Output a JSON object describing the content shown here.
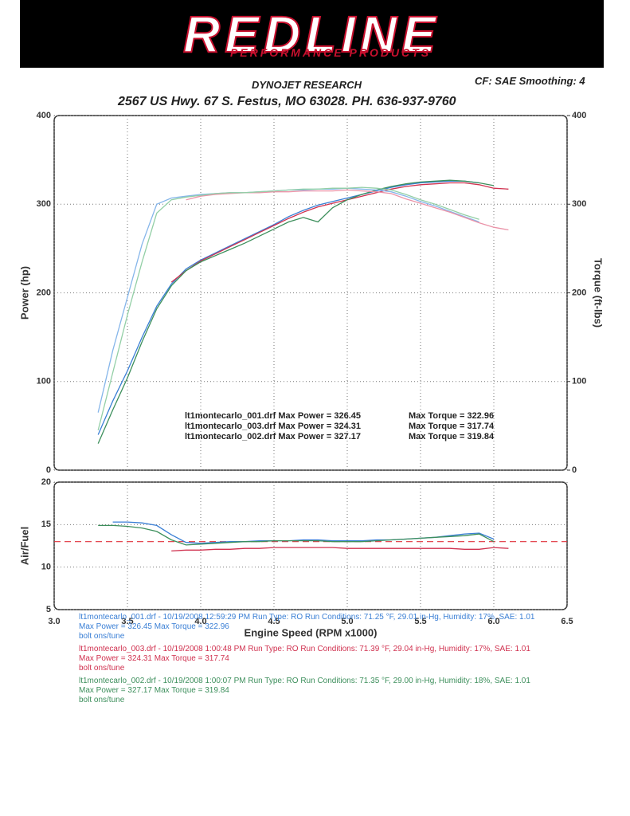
{
  "header": {
    "logo": "REDLINE",
    "logo_subtitle": "PERFORMANCE PRODUCTS",
    "company": "DYNOJET RESEARCH",
    "settings": "CF: SAE  Smoothing: 4",
    "address": "2567 US Hwy. 67 S. Festus, MO 63028. PH. 636-937-9760"
  },
  "chart_data": [
    {
      "type": "line",
      "ylabel": "Power (hp)",
      "y2label": "Torque (ft-lbs)",
      "x": [
        3.3,
        3.4,
        3.5,
        3.6,
        3.7,
        3.8,
        3.9,
        4.0,
        4.1,
        4.2,
        4.3,
        4.4,
        4.5,
        4.6,
        4.7,
        4.8,
        4.9,
        5.0,
        5.1,
        5.2,
        5.3,
        5.4,
        5.5,
        5.6,
        5.7,
        5.8,
        5.9,
        6.0,
        6.1
      ],
      "xlim": [
        3.0,
        6.5
      ],
      "xticks": [
        3,
        3.5,
        4,
        4.5,
        5,
        5.5,
        6,
        6.5
      ],
      "xtick_labels": false,
      "ylim": [
        0,
        400
      ],
      "yticks": [
        0,
        100,
        200,
        300,
        400
      ],
      "y2lim": [
        0,
        400
      ],
      "y2ticks": [
        0,
        100,
        200,
        300,
        400
      ],
      "grid": true,
      "series": [
        {
          "color": "#3a7fd5",
          "values": [
            40,
            78,
            112,
            150,
            185,
            210,
            227,
            237,
            245,
            253,
            261,
            269,
            277,
            286,
            293,
            299,
            303,
            307,
            311,
            315,
            319,
            322,
            324,
            325,
            326,
            326,
            324,
            null,
            null
          ]
        },
        {
          "color": "#d0314f",
          "values": [
            null,
            null,
            null,
            null,
            null,
            212,
            225,
            236,
            244,
            252,
            260,
            268,
            276,
            284,
            291,
            297,
            301,
            305,
            309,
            313,
            317,
            320,
            322,
            323,
            324,
            324,
            322,
            318,
            317
          ]
        },
        {
          "color": "#3d8f5c",
          "values": [
            30,
            68,
            104,
            145,
            182,
            208,
            225,
            235,
            242,
            249,
            256,
            264,
            272,
            280,
            285,
            280,
            296,
            305,
            311,
            316,
            320,
            323,
            325,
            326,
            327,
            326,
            324,
            321,
            null
          ]
        },
        {
          "color": "#86b6ea",
          "axis": "y2",
          "values": [
            65,
            135,
            195,
            255,
            300,
            307,
            309,
            311,
            312,
            313,
            313,
            314,
            315,
            316,
            316,
            317,
            317,
            318,
            317,
            316,
            314,
            309,
            303,
            298,
            292,
            286,
            280,
            null,
            null
          ]
        },
        {
          "color": "#eb93a8",
          "axis": "y2",
          "values": [
            null,
            null,
            null,
            null,
            null,
            null,
            305,
            309,
            311,
            312,
            313,
            313,
            314,
            314,
            315,
            315,
            315,
            316,
            315,
            314,
            312,
            306,
            301,
            296,
            291,
            285,
            279,
            274,
            271
          ]
        },
        {
          "color": "#93cfa6",
          "axis": "y2",
          "values": [
            45,
            110,
            175,
            235,
            290,
            305,
            308,
            310,
            312,
            313,
            313,
            314,
            315,
            316,
            317,
            317,
            318,
            318,
            319,
            318,
            316,
            311,
            305,
            300,
            294,
            288,
            283,
            null,
            null
          ]
        }
      ],
      "annotations": [
        [
          "lt1montecarlo_001.drf Max Power = 326.45",
          "Max Torque = 322.96"
        ],
        [
          "lt1montecarlo_003.drf Max Power = 324.31",
          "Max Torque = 317.74"
        ],
        [
          "lt1montecarlo_002.drf Max Power = 327.17",
          "Max Torque = 319.84"
        ]
      ]
    },
    {
      "type": "line",
      "ylabel": "Air/Fuel",
      "xlabel": "Engine Speed (RPM x1000)",
      "x": [
        3.3,
        3.4,
        3.5,
        3.6,
        3.7,
        3.8,
        3.9,
        4.0,
        4.1,
        4.2,
        4.3,
        4.4,
        4.5,
        4.6,
        4.7,
        4.8,
        4.9,
        5.0,
        5.1,
        5.2,
        5.3,
        5.4,
        5.5,
        5.6,
        5.7,
        5.8,
        5.9,
        6.0,
        6.1
      ],
      "xlim": [
        3.0,
        6.5
      ],
      "xticks": [
        {
          "value": 3,
          "label": "3.0"
        },
        3.5,
        {
          "value": 4,
          "label": "4.0"
        },
        4.5,
        {
          "value": 5,
          "label": "5.0"
        },
        5.5,
        {
          "value": 6,
          "label": "6.0"
        },
        6.5
      ],
      "xtick_labels": true,
      "ylim": [
        5,
        20
      ],
      "yticks": [
        5,
        10,
        15,
        20
      ],
      "grid": true,
      "reference_line": 13,
      "reference_color": "#e0303a",
      "series": [
        {
          "color": "#3a7fd5",
          "values": [
            null,
            15.3,
            15.3,
            15.2,
            14.9,
            13.8,
            12.9,
            12.8,
            12.9,
            13.0,
            13.0,
            13.1,
            13.1,
            13.1,
            13.2,
            13.2,
            13.1,
            13.1,
            13.1,
            13.2,
            13.2,
            13.3,
            13.4,
            13.5,
            13.7,
            13.9,
            14.0,
            13.3,
            null
          ]
        },
        {
          "color": "#d0314f",
          "values": [
            null,
            null,
            null,
            null,
            null,
            11.9,
            12.0,
            12.0,
            12.1,
            12.1,
            12.2,
            12.2,
            12.3,
            12.3,
            12.3,
            12.3,
            12.3,
            12.2,
            12.2,
            12.2,
            12.2,
            12.2,
            12.2,
            12.2,
            12.2,
            12.1,
            12.1,
            12.3,
            12.2
          ]
        },
        {
          "color": "#3d8f5c",
          "values": [
            14.9,
            14.9,
            14.8,
            14.6,
            14.2,
            13.2,
            12.6,
            12.7,
            12.8,
            12.9,
            13.0,
            13.0,
            13.1,
            13.1,
            13.1,
            13.1,
            13.0,
            13.0,
            13.0,
            13.1,
            13.2,
            13.3,
            13.4,
            13.5,
            13.6,
            13.7,
            13.9,
            13.0,
            null
          ]
        }
      ]
    }
  ],
  "notes": [
    {
      "run": "lt1montecarlo_001.drf - 10/19/2008 12:59:29 PM  Run Type: RO  Run Conditions: 71.25 °F, 29.01 in-Hg,  Humidity:  17%, SAE: 1.01",
      "max": "Max Power = 326.45  Max Torque = 322.96",
      "desc": "bolt ons/tune"
    },
    {
      "run": "lt1montecarlo_003.drf - 10/19/2008 1:00:48 PM  Run Type: RO  Run Conditions: 71.39 °F, 29.04 in-Hg,  Humidity:  17%, SAE: 1.01",
      "max": "Max Power = 324.31  Max Torque = 317.74",
      "desc": "bolt ons/tune"
    },
    {
      "run": "lt1montecarlo_002.drf - 10/19/2008 1:00:07 PM  Run Type: RO  Run Conditions: 71.35 °F, 29.00 in-Hg,  Humidity:  18%, SAE: 1.01",
      "max": "Max Power = 327.17  Max Torque = 319.84",
      "desc": "bolt ons/tune"
    }
  ]
}
